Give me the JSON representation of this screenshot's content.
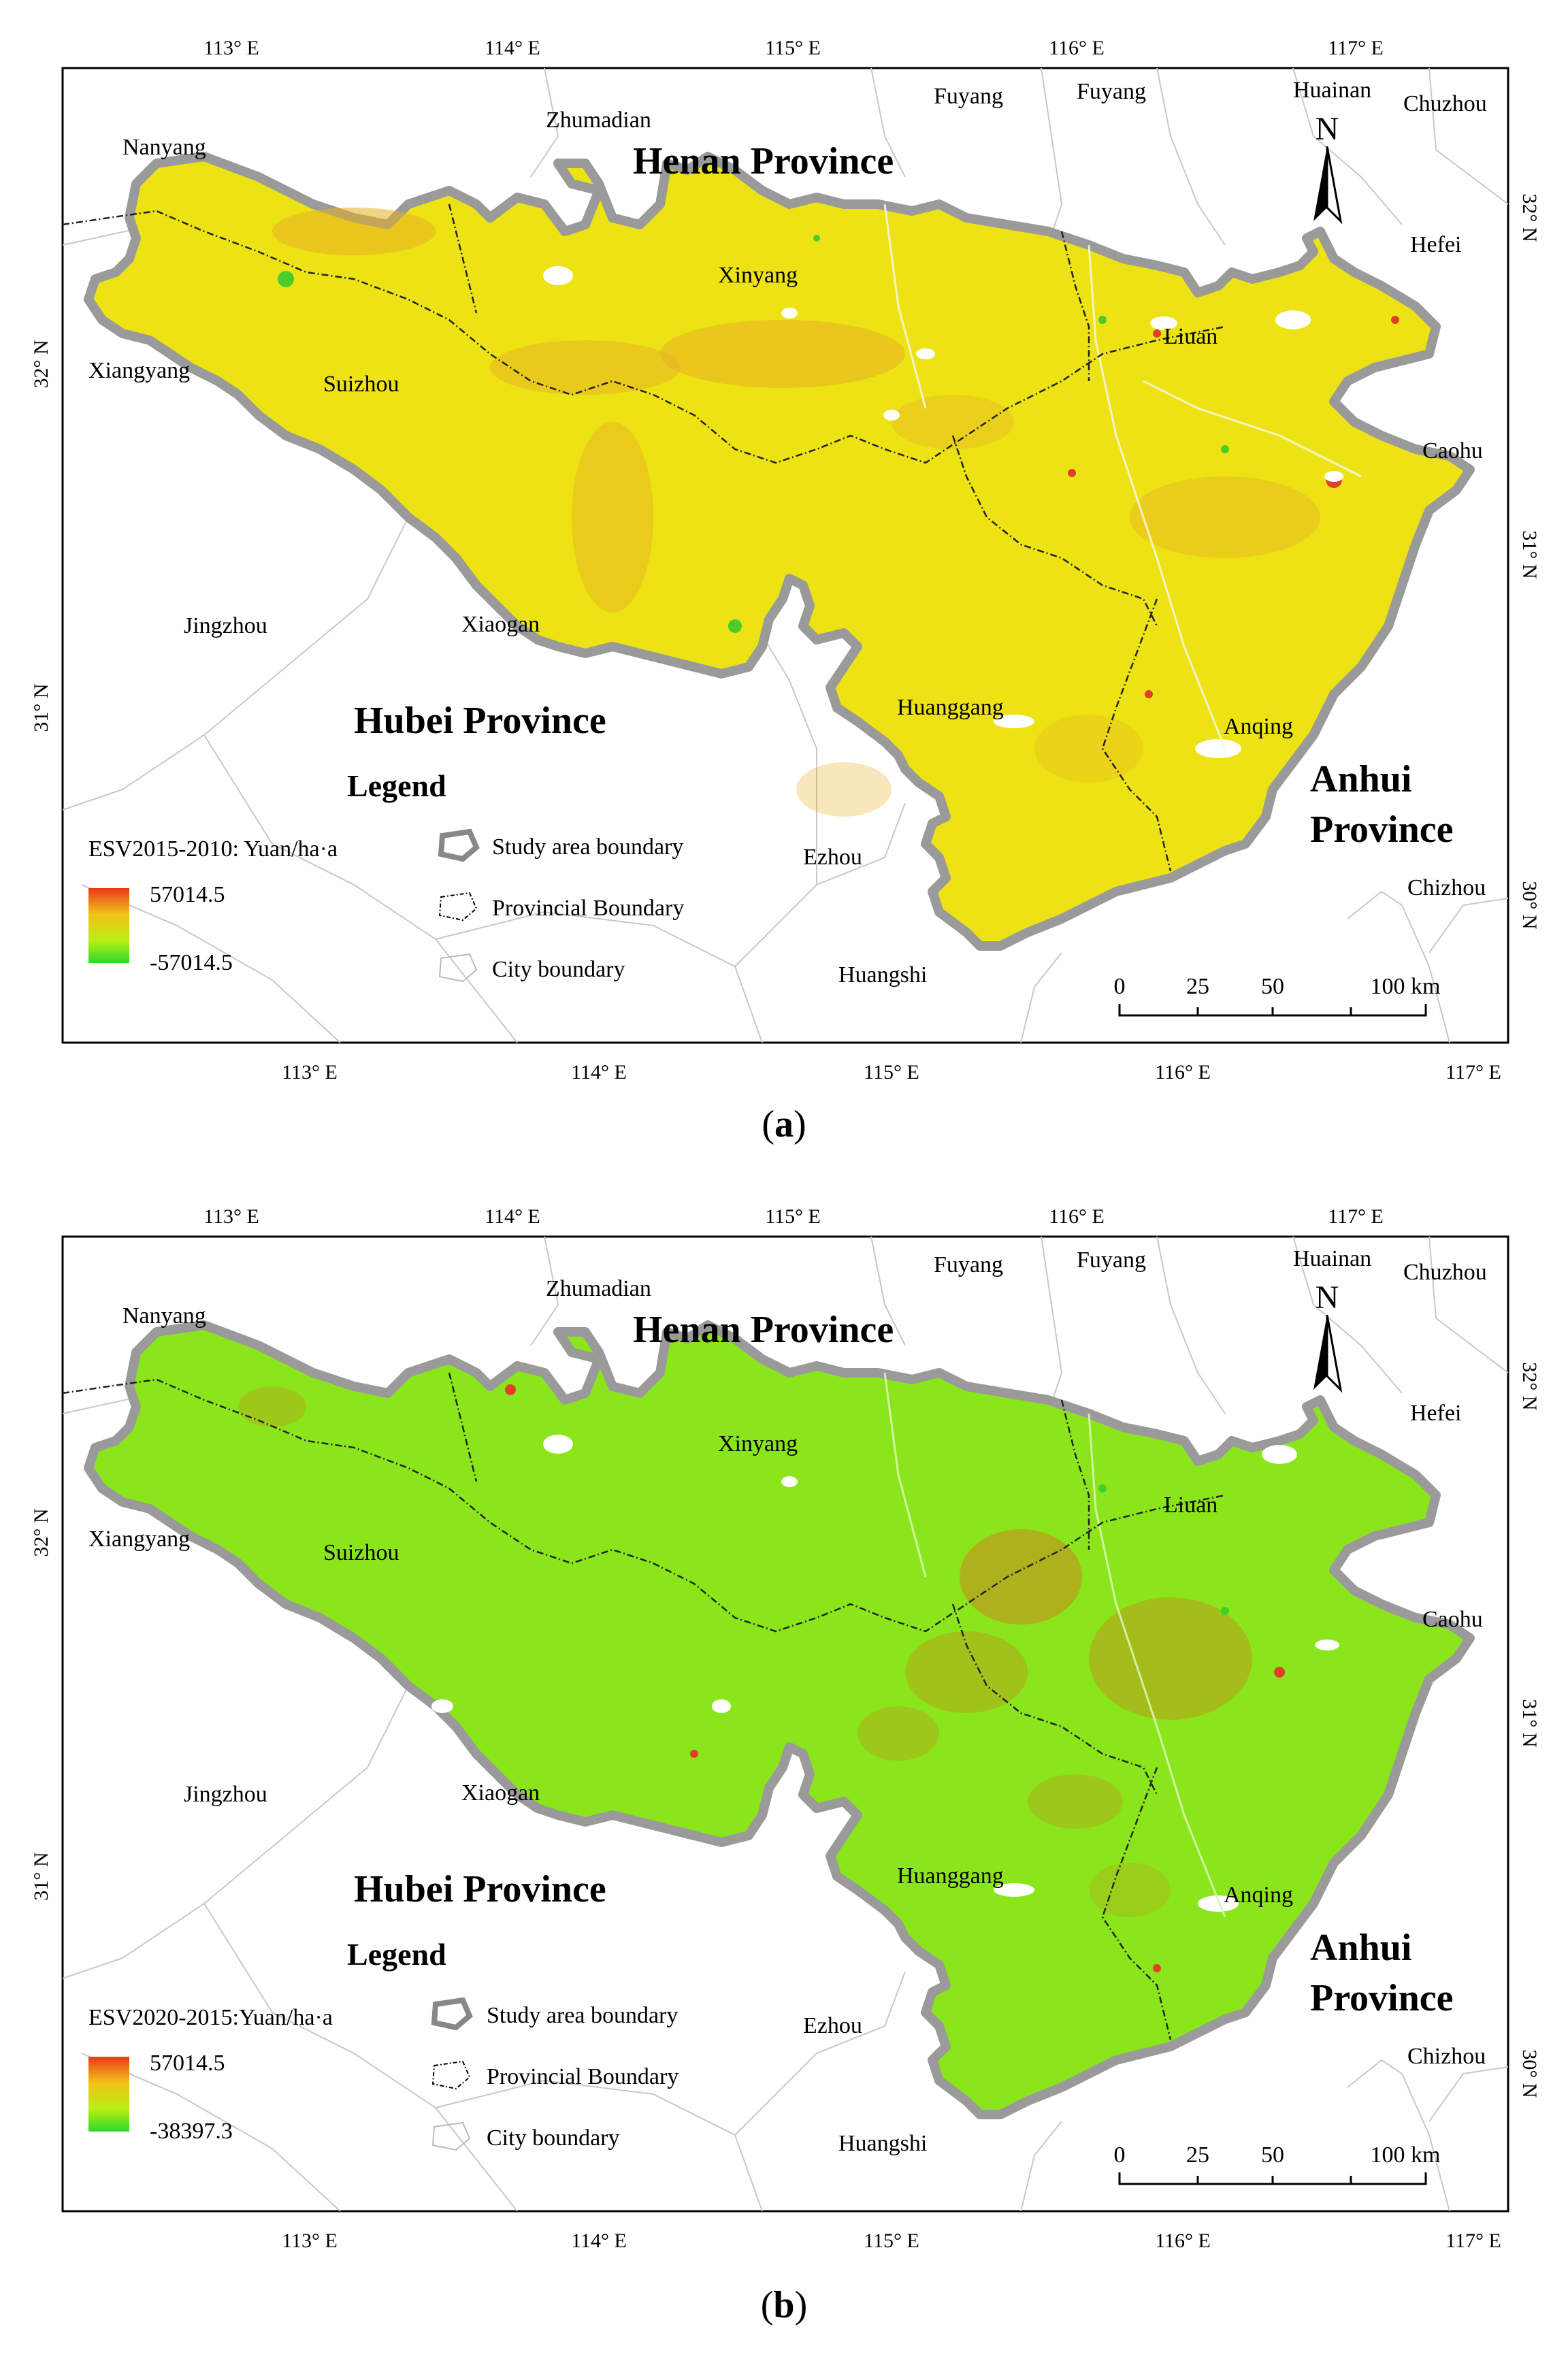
{
  "panels": [
    {
      "id": "a",
      "caption_open": "(",
      "caption_letter": "a",
      "caption_close": ")",
      "legend": {
        "title": "Legend",
        "field": "ESV2015-2010: Yuan/ha·a",
        "max_label": "57014.5",
        "min_label": "-57014.5",
        "gradient": [
          "#e83a1a",
          "#f3c21a",
          "#b9ef10",
          "#2bd82b"
        ],
        "study_area": "Study area boundary",
        "provincial": "Provincial Boundary",
        "city": "City boundary"
      },
      "region_colors": {
        "fill": "#ece214",
        "patch": "#e8b025",
        "hot": "#e0402a",
        "cool": "#4ccc2c"
      }
    },
    {
      "id": "b",
      "caption_open": "(",
      "caption_letter": "b",
      "caption_close": ")",
      "legend": {
        "title": "Legend",
        "field": "ESV2020-2015:Yuan/ha·a",
        "max_label": "57014.5",
        "min_label": "-38397.3",
        "gradient": [
          "#e83a1a",
          "#f3c21a",
          "#b9ef10",
          "#2bd82b"
        ],
        "study_area": "Study area boundary",
        "provincial": "Provincial Boundary",
        "city": "City boundary"
      },
      "region_colors": {
        "fill": "#8ae61a",
        "patch": "#d8701e",
        "hot": "#e0402a",
        "cool": "#3fcf2a"
      }
    }
  ],
  "map_labels": {
    "henan": "Henan Province",
    "hubei": "Hubei Province",
    "anhui_1": "Anhui",
    "anhui_2": "Province",
    "cities": {
      "zhumadian": "Zhumadian",
      "fuyang_1": "Fuyang",
      "fuyang_2": "Fuyang",
      "huainan": "Huainan",
      "chuzhou": "Chuzhou",
      "nanyang": "Nanyang",
      "hefei": "Hefei",
      "xinyang": "Xinyang",
      "liuan": "Liuan",
      "xiangyang": "Xiangyang",
      "suizhou": "Suizhou",
      "caohu": "Caohu",
      "jingzhou": "Jingzhou",
      "xiaogan": "Xiaogan",
      "huanggang": "Huanggang",
      "anqing": "Anqing",
      "ezhou": "Ezhou",
      "chizhou": "Chizhou",
      "huangshi": "Huangshi"
    },
    "north": "N"
  },
  "axes": {
    "top_ticks": [
      "113° E",
      "114° E",
      "115° E",
      "116° E",
      "117° E"
    ],
    "bottom_ticks": [
      "113° E",
      "114° E",
      "115° E",
      "116° E",
      "117° E"
    ],
    "left_ticks": [
      "32° N",
      "31° N"
    ],
    "right_ticks": [
      "32° N",
      "31° N",
      "30° N"
    ]
  },
  "scale_bar": {
    "labels": [
      "0",
      "25",
      "50",
      "100 km"
    ]
  }
}
